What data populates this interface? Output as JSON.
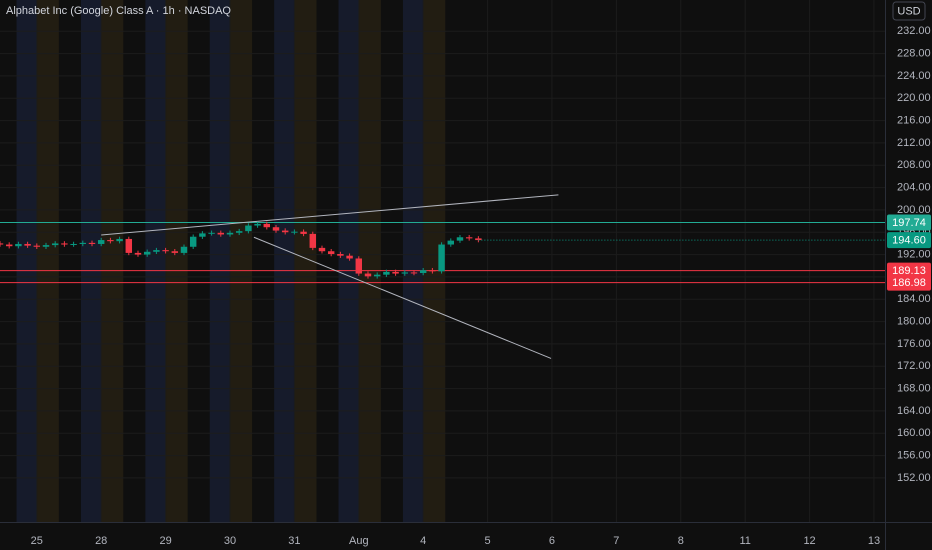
{
  "chart_data": {
    "type": "candlestick",
    "title": "Alphabet Inc (Google) Class A · 1h · NASDAQ",
    "currency": "USD",
    "x": [
      -4,
      -3,
      -2,
      -1,
      0,
      1,
      2,
      3,
      4,
      5,
      6,
      7,
      8,
      9,
      10,
      11,
      12,
      13,
      14,
      15,
      16,
      17,
      18,
      19,
      20,
      21,
      22,
      23,
      24,
      25,
      26,
      27,
      28,
      29,
      30,
      31,
      32,
      33,
      34,
      35,
      36,
      37,
      38,
      39,
      40,
      41,
      42,
      43,
      44,
      45,
      46,
      47,
      48
    ],
    "open": [
      194.0,
      193.8,
      193.5,
      193.9,
      193.6,
      193.4,
      193.7,
      194.0,
      193.8,
      193.9,
      194.1,
      193.9,
      194.6,
      194.4,
      194.8,
      192.3,
      192.0,
      192.5,
      192.8,
      192.6,
      192.3,
      193.4,
      195.2,
      195.8,
      195.9,
      195.6,
      195.9,
      196.2,
      197.2,
      197.5,
      196.9,
      196.3,
      196.0,
      196.1,
      195.7,
      193.2,
      192.6,
      192.1,
      191.8,
      191.3,
      188.6,
      188.1,
      188.4,
      188.9,
      188.6,
      188.8,
      188.7,
      189.2,
      189.0,
      193.8,
      194.5,
      195.1,
      194.9
    ],
    "high": [
      194.4,
      194.2,
      194.3,
      194.3,
      194.0,
      194.1,
      194.4,
      194.4,
      194.3,
      194.5,
      194.5,
      195.0,
      195.0,
      195.2,
      195.2,
      192.7,
      192.9,
      193.2,
      193.2,
      193.0,
      193.8,
      195.6,
      196.2,
      196.3,
      196.3,
      196.3,
      196.6,
      197.6,
      197.9,
      197.9,
      197.3,
      196.7,
      196.5,
      196.5,
      196.1,
      193.6,
      193.0,
      192.5,
      192.2,
      191.7,
      189.0,
      188.8,
      189.3,
      189.3,
      189.2,
      189.2,
      189.6,
      189.6,
      194.2,
      194.9,
      195.5,
      195.5,
      195.3
    ],
    "low": [
      193.4,
      193.1,
      193.1,
      193.2,
      193.0,
      193.0,
      193.3,
      193.4,
      193.4,
      193.5,
      193.5,
      193.5,
      194.0,
      194.0,
      191.9,
      191.6,
      191.6,
      192.1,
      192.2,
      191.9,
      191.9,
      193.0,
      194.8,
      195.4,
      195.2,
      195.2,
      195.5,
      195.8,
      196.8,
      196.5,
      195.9,
      195.6,
      195.6,
      195.3,
      192.8,
      192.2,
      191.7,
      191.4,
      190.9,
      188.2,
      187.7,
      187.7,
      188.0,
      188.2,
      188.2,
      188.3,
      188.3,
      188.6,
      188.6,
      193.4,
      194.1,
      194.5,
      194.2
    ],
    "close": [
      193.8,
      193.5,
      193.9,
      193.6,
      193.4,
      193.7,
      194.0,
      193.8,
      193.9,
      194.1,
      193.9,
      194.6,
      194.4,
      194.8,
      192.3,
      192.0,
      192.5,
      192.8,
      192.6,
      192.3,
      193.4,
      195.2,
      195.8,
      195.9,
      195.6,
      195.9,
      196.2,
      197.2,
      197.5,
      196.9,
      196.3,
      196.0,
      196.1,
      195.7,
      193.2,
      192.6,
      192.1,
      191.8,
      191.3,
      188.6,
      188.1,
      188.4,
      188.9,
      188.6,
      188.8,
      188.7,
      189.2,
      189.0,
      193.8,
      194.5,
      195.1,
      194.9,
      194.6
    ],
    "up_color": "#089981",
    "down_color": "#f23645",
    "xlim": [
      -4,
      92.2
    ],
    "ylim": [
      144.1,
      237.6
    ],
    "xticks": [
      {
        "value": 0,
        "label": "25"
      },
      {
        "value": 7,
        "label": "28"
      },
      {
        "value": 14,
        "label": "29"
      },
      {
        "value": 21,
        "label": "30"
      },
      {
        "value": 28,
        "label": "31"
      },
      {
        "value": 35,
        "label": "Aug"
      },
      {
        "value": 42,
        "label": "4"
      },
      {
        "value": 49,
        "label": "5"
      },
      {
        "value": 56,
        "label": "6"
      },
      {
        "value": 63,
        "label": "7"
      },
      {
        "value": 70,
        "label": "8"
      },
      {
        "value": 77,
        "label": "11"
      },
      {
        "value": 84,
        "label": "12"
      },
      {
        "value": 91,
        "label": "13"
      }
    ],
    "yticks": [
      {
        "value": 152,
        "label": "152.00"
      },
      {
        "value": 156,
        "label": "156.00"
      },
      {
        "value": 160,
        "label": "160.00"
      },
      {
        "value": 164,
        "label": "164.00"
      },
      {
        "value": 168,
        "label": "168.00"
      },
      {
        "value": 172,
        "label": "172.00"
      },
      {
        "value": 176,
        "label": "176.00"
      },
      {
        "value": 180,
        "label": "180.00"
      },
      {
        "value": 184,
        "label": "184.00"
      },
      {
        "value": 188,
        "label": "188.00"
      },
      {
        "value": 192,
        "label": "192.00"
      },
      {
        "value": 196,
        "label": "196.00"
      },
      {
        "value": 200,
        "label": "200.00"
      },
      {
        "value": 204,
        "label": "204.00"
      },
      {
        "value": 208,
        "label": "208.00"
      },
      {
        "value": 212,
        "label": "212.00"
      },
      {
        "value": 216,
        "label": "216.00"
      },
      {
        "value": 220,
        "label": "220.00"
      },
      {
        "value": 224,
        "label": "224.00"
      },
      {
        "value": 228,
        "label": "228.00"
      },
      {
        "value": 232,
        "label": "232.00"
      }
    ],
    "grid": true,
    "levels": [
      {
        "value": 197.74,
        "label": "197.74",
        "color": "#22ab94"
      },
      {
        "value": 189.13,
        "label": "189.13",
        "color": "#f23645"
      },
      {
        "value": 186.98,
        "label": "186.98",
        "color": "#f23645"
      }
    ],
    "last_price": {
      "value": 194.6,
      "label": "194.60",
      "color": "#089981"
    },
    "trend_lines": [
      {
        "x": [
          7,
          56.7
        ],
        "y": [
          195.5,
          202.7
        ]
      },
      {
        "x": [
          23.6,
          55.9
        ],
        "y": [
          195.1,
          173.4
        ]
      }
    ]
  }
}
